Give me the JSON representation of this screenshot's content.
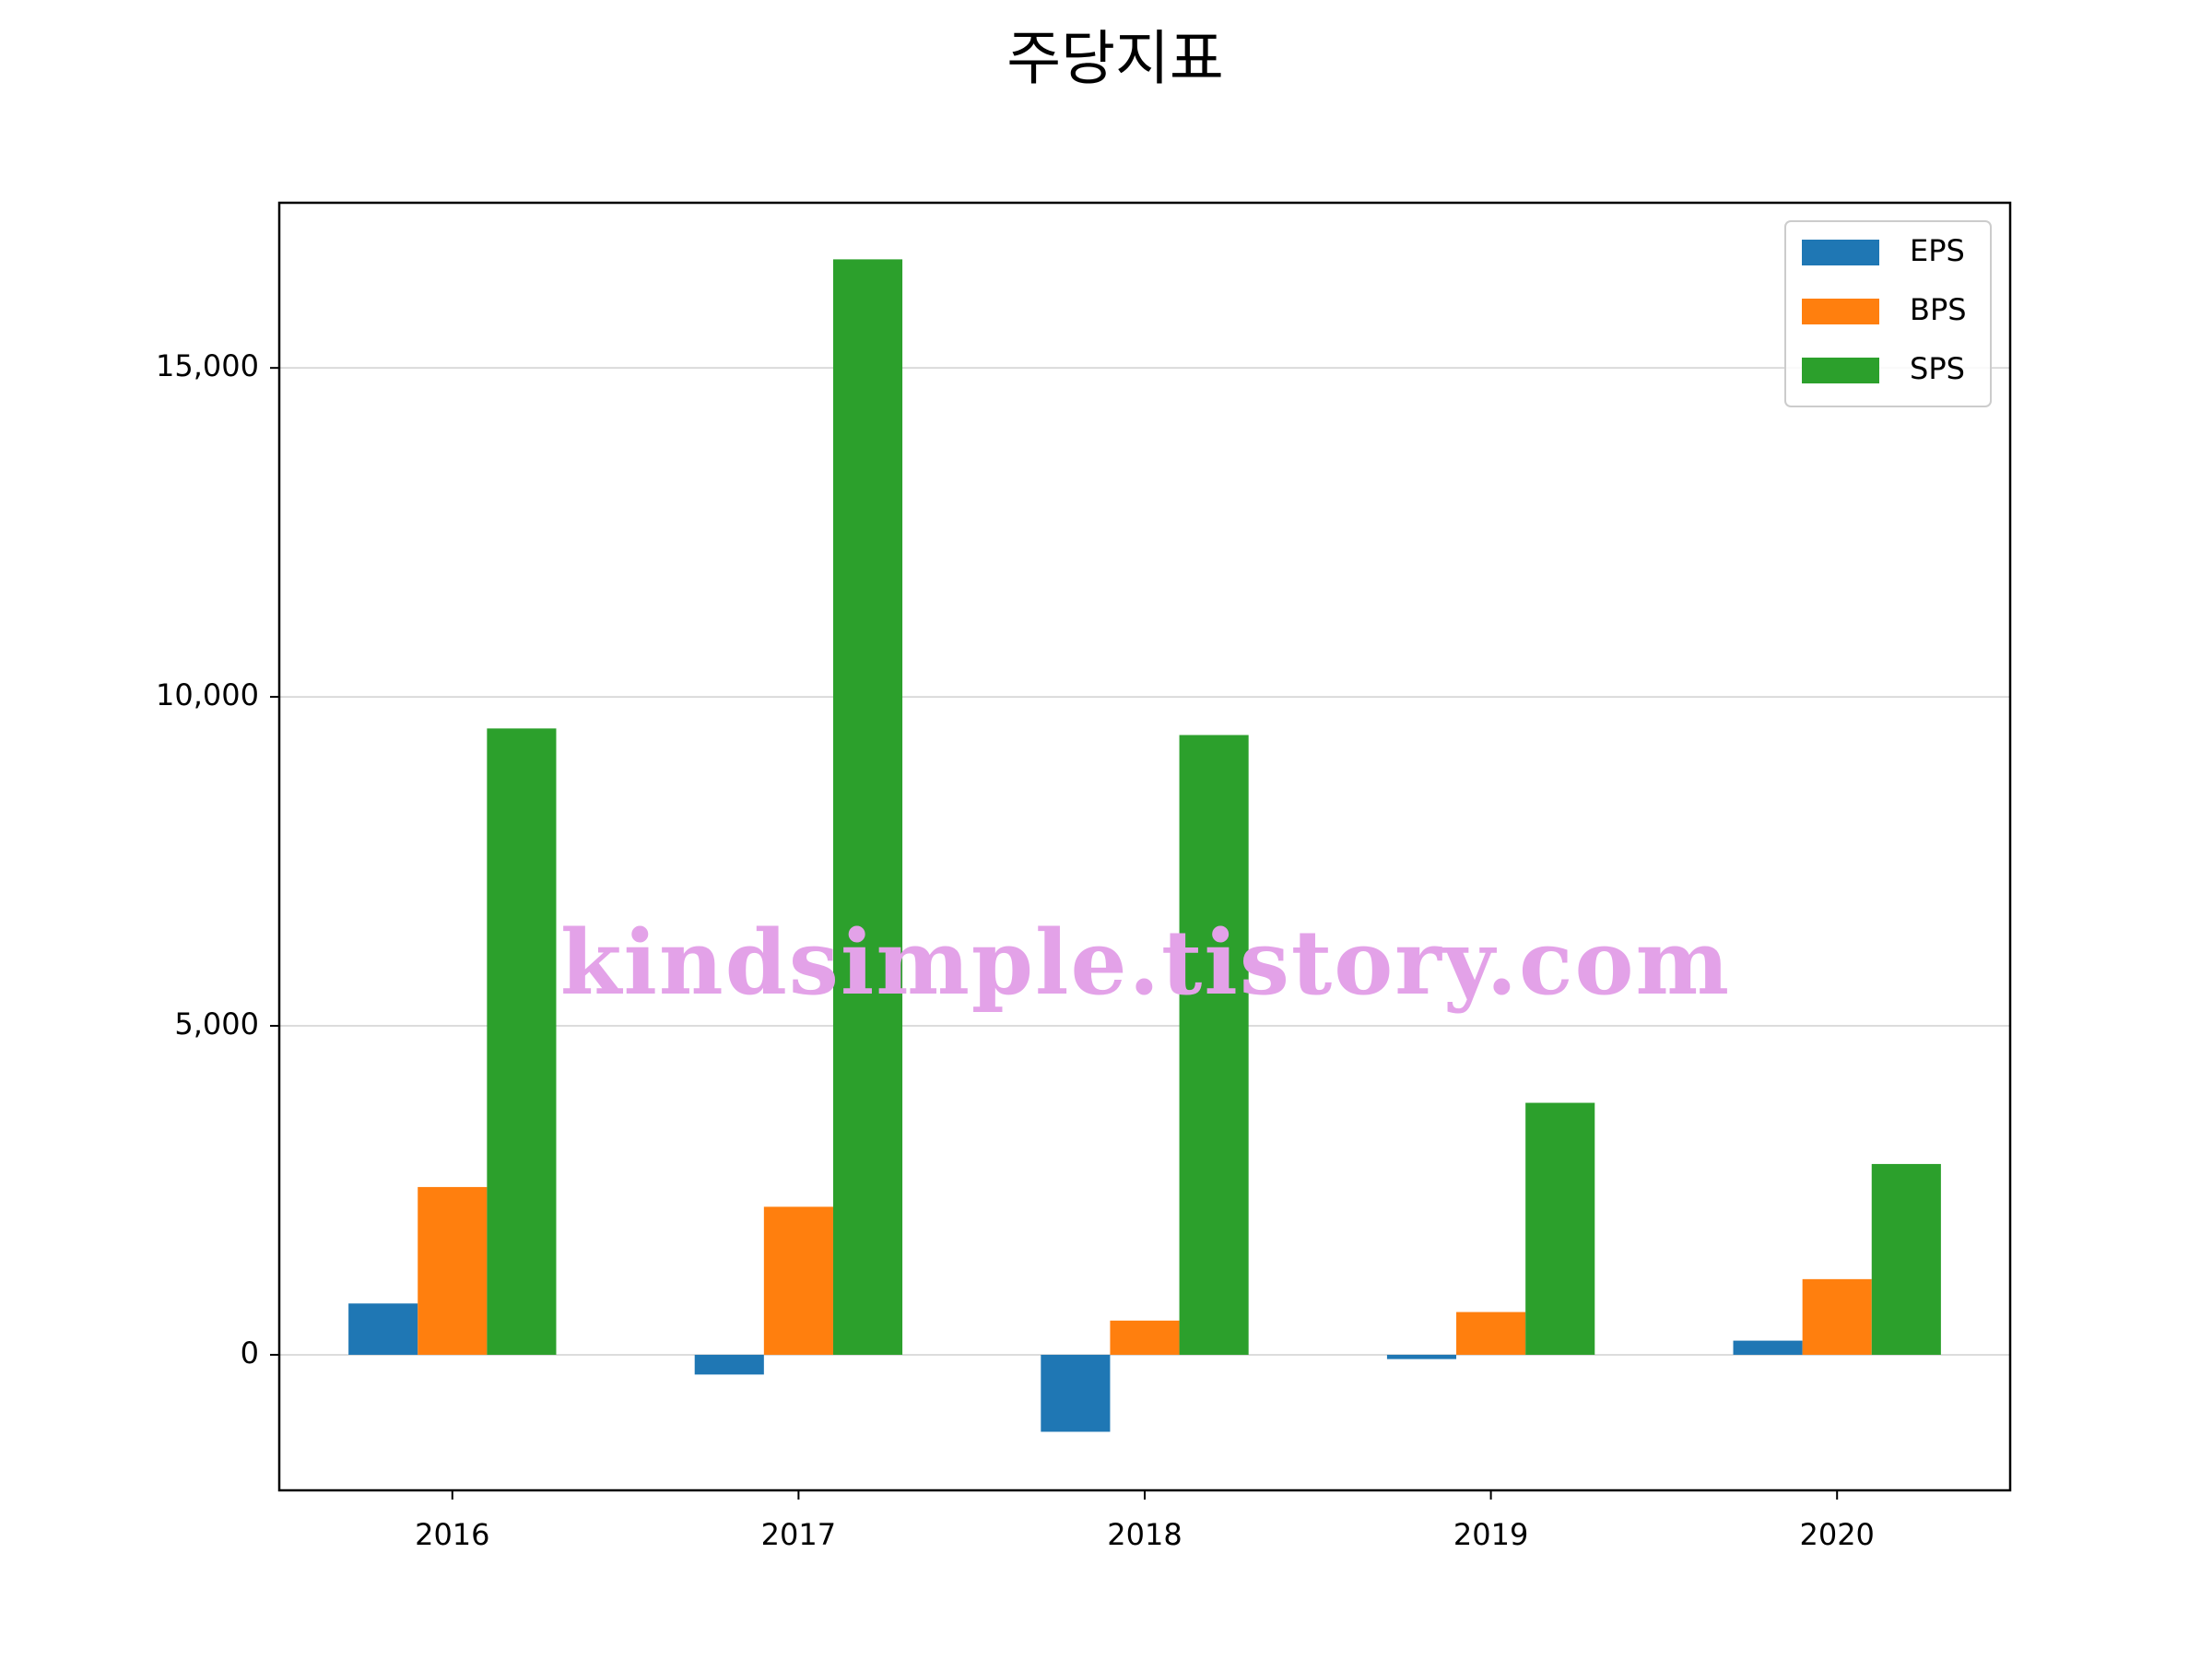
{
  "chart_data": {
    "type": "bar",
    "title": "주당지표",
    "watermark": "kindsimple.tistory.com",
    "categories": [
      "2016",
      "2017",
      "2018",
      "2019",
      "2020"
    ],
    "series": [
      {
        "name": "EPS",
        "color": "#1f77b4",
        "values": [
          780,
          -300,
          -1170,
          -65,
          215
        ]
      },
      {
        "name": "BPS",
        "color": "#ff7f0e",
        "values": [
          2550,
          2250,
          520,
          650,
          1150
        ]
      },
      {
        "name": "SPS",
        "color": "#2ca02c",
        "values": [
          9520,
          16650,
          9420,
          3830,
          2900
        ]
      }
    ],
    "ylim": [
      -2060,
      17510
    ],
    "yticks": [
      0,
      {
        "value": 5000,
        "label": "5,000"
      },
      {
        "value": 10000,
        "label": "10,000"
      },
      {
        "value": 15000,
        "label": "15,000"
      }
    ],
    "grid": true,
    "legend": "upper right"
  }
}
